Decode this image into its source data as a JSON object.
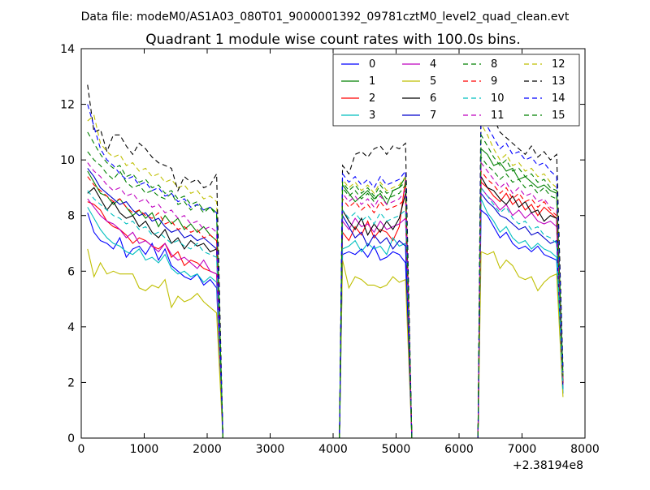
{
  "figure": {
    "suptitle": "Data file: modeM0/AS1A03_080T01_9000001392_09781cztM0_level2_quad_clean.evt",
    "x_offset_label": "+2.38194e8"
  },
  "chart_data": {
    "type": "line",
    "title": "Quadrant 1 module wise count rates with 100.0s bins.",
    "xlabel": "",
    "ylabel": "",
    "xlim": [
      0,
      8000
    ],
    "ylim": [
      0,
      14
    ],
    "x_ticks": [
      0,
      1000,
      2000,
      3000,
      4000,
      5000,
      6000,
      7000,
      8000
    ],
    "y_ticks": [
      0,
      2,
      4,
      6,
      8,
      10,
      12,
      14
    ],
    "grid": false,
    "legend_position": "top-right",
    "legend_columns": 4,
    "x_offset": 238194000,
    "gaps": [
      [
        2200,
        2250
      ],
      [
        5150,
        5300
      ],
      [
        7600,
        7650
      ]
    ],
    "segments": [
      [
        100,
        2150
      ],
      [
        4150,
        5150
      ],
      [
        6350,
        7550
      ]
    ],
    "series": [
      {
        "name": "0",
        "color": "#0000ff",
        "dash": "solid",
        "s1": [
          8.1,
          7.4,
          7.1,
          7.0,
          6.8,
          7.2,
          6.5,
          6.8,
          6.9,
          6.6,
          7.0,
          6.4,
          6.8,
          6.2,
          6.0,
          5.8,
          5.7,
          5.9,
          5.5,
          5.7,
          5.4
        ],
        "s2": [
          6.6,
          6.7,
          6.6,
          6.8,
          6.5,
          6.9,
          6.4,
          6.5,
          6.7,
          6.6,
          6.3
        ],
        "s3": [
          8.2,
          8.0,
          7.6,
          7.2,
          7.4,
          7.0,
          6.8,
          6.9,
          6.7,
          6.9,
          6.6,
          6.5,
          6.4
        ]
      },
      {
        "name": "1",
        "color": "#008000",
        "dash": "solid",
        "s1": [
          9.6,
          9.2,
          8.8,
          8.7,
          8.4,
          8.6,
          8.3,
          8.0,
          8.2,
          7.9,
          8.1,
          7.6,
          8.0,
          7.7,
          7.9,
          7.5,
          7.7,
          7.4,
          7.6,
          7.3,
          7.1
        ],
        "s2": [
          9.1,
          8.8,
          8.5,
          8.7,
          8.9,
          8.6,
          8.8,
          8.4,
          8.9,
          9.0,
          9.4
        ],
        "s3": [
          10.4,
          10.2,
          9.8,
          9.9,
          9.6,
          9.7,
          9.3,
          9.4,
          9.2,
          9.0,
          9.1,
          8.9,
          8.8
        ]
      },
      {
        "name": "2",
        "color": "#ff0000",
        "dash": "solid",
        "s1": [
          8.5,
          8.4,
          8.2,
          7.8,
          7.6,
          7.5,
          7.3,
          7.0,
          7.2,
          7.1,
          6.9,
          6.8,
          7.0,
          6.5,
          6.7,
          6.2,
          6.4,
          6.3,
          6.1,
          6.0,
          5.9
        ],
        "s2": [
          7.4,
          7.1,
          7.6,
          7.3,
          7.8,
          7.2,
          7.5,
          7.4,
          7.1,
          7.6,
          9.3
        ],
        "s3": [
          9.2,
          9.0,
          8.7,
          8.5,
          8.8,
          8.4,
          8.6,
          8.2,
          8.4,
          8.0,
          8.3,
          8.1,
          7.9
        ]
      },
      {
        "name": "3",
        "color": "#00bfbf",
        "dash": "solid",
        "s1": [
          8.3,
          7.9,
          7.5,
          7.2,
          7.0,
          6.9,
          6.7,
          6.6,
          6.8,
          6.4,
          6.5,
          6.3,
          6.6,
          6.1,
          5.9,
          6.0,
          5.8,
          5.9,
          5.6,
          5.8,
          5.6
        ],
        "s2": [
          6.8,
          6.9,
          7.1,
          6.7,
          7.0,
          6.8,
          6.9,
          6.6,
          7.2,
          6.9,
          7.0
        ],
        "s3": [
          8.6,
          8.1,
          7.8,
          7.4,
          7.6,
          7.2,
          7.0,
          7.1,
          6.8,
          7.0,
          6.8,
          6.7,
          6.5
        ]
      },
      {
        "name": "4",
        "color": "#bf00bf",
        "dash": "solid",
        "s1": [
          8.6,
          8.3,
          8.0,
          7.8,
          7.7,
          7.5,
          7.2,
          7.4,
          7.0,
          7.1,
          6.9,
          6.7,
          7.0,
          6.6,
          6.4,
          6.5,
          6.3,
          6.1,
          6.4,
          6.0,
          5.9
        ],
        "s2": [
          7.8,
          7.5,
          7.9,
          7.6,
          7.7,
          7.4,
          7.8,
          7.5,
          7.6,
          7.7,
          7.9
        ],
        "s3": [
          9.0,
          8.7,
          8.5,
          8.2,
          8.4,
          8.0,
          8.2,
          7.9,
          8.1,
          7.8,
          7.7,
          7.8,
          7.6
        ]
      },
      {
        "name": "5",
        "color": "#bfbf00",
        "dash": "solid",
        "s1": [
          6.8,
          5.8,
          6.3,
          5.9,
          6.0,
          5.9,
          5.9,
          5.9,
          5.4,
          5.3,
          5.5,
          5.4,
          5.7,
          4.7,
          5.1,
          4.9,
          5.0,
          5.2,
          4.9,
          4.7,
          4.5
        ],
        "s2": [
          6.4,
          5.4,
          5.8,
          5.7,
          5.5,
          5.5,
          5.4,
          5.5,
          5.8,
          5.6,
          5.7
        ],
        "s3": [
          6.7,
          6.6,
          6.7,
          6.1,
          6.4,
          6.2,
          5.8,
          5.7,
          5.8,
          5.3,
          5.6,
          5.8,
          5.9
        ]
      },
      {
        "name": "6",
        "color": "#000000",
        "dash": "solid",
        "s1": [
          8.8,
          9.0,
          8.6,
          8.2,
          8.5,
          8.1,
          7.9,
          8.0,
          7.6,
          7.8,
          7.4,
          7.2,
          7.5,
          7.0,
          7.2,
          6.8,
          7.1,
          6.9,
          7.0,
          6.7,
          6.8
        ],
        "s2": [
          8.2,
          7.8,
          7.5,
          7.9,
          7.3,
          7.7,
          7.4,
          7.8,
          7.5,
          7.9,
          8.8
        ],
        "s3": [
          9.4,
          9.0,
          8.9,
          8.6,
          8.4,
          8.7,
          8.3,
          8.5,
          8.1,
          8.2,
          7.8,
          8.0,
          7.9
        ]
      },
      {
        "name": "7",
        "color": "#0000cd",
        "dash": "solid",
        "s1": [
          9.7,
          9.4,
          9.0,
          8.8,
          8.6,
          8.4,
          8.5,
          8.2,
          8.0,
          8.1,
          7.8,
          7.9,
          7.6,
          7.4,
          7.5,
          7.2,
          7.3,
          7.1,
          7.2,
          7.0,
          6.8
        ],
        "s2": [
          8.0,
          7.6,
          7.2,
          7.4,
          6.9,
          7.3,
          7.0,
          7.2,
          6.8,
          7.1,
          6.9
        ],
        "s3": [
          8.8,
          8.5,
          8.3,
          8.0,
          7.9,
          7.7,
          7.5,
          7.6,
          7.3,
          7.4,
          7.2,
          7.0,
          7.1
        ]
      },
      {
        "name": "8",
        "color": "#008000",
        "dash": "dashed",
        "s1": [
          10.3,
          10.0,
          9.8,
          9.5,
          9.3,
          9.6,
          9.2,
          9.0,
          9.1,
          8.8,
          8.9,
          8.7,
          8.6,
          8.8,
          8.4,
          8.5,
          8.2,
          8.4,
          8.1,
          8.3,
          8.0
        ],
        "s2": [
          9.0,
          8.7,
          8.9,
          8.6,
          8.8,
          8.5,
          8.9,
          8.6,
          8.7,
          8.8,
          9.1
        ],
        "s3": [
          10.1,
          9.8,
          9.6,
          9.3,
          9.5,
          9.2,
          9.3,
          9.0,
          9.1,
          8.8,
          9.0,
          8.7,
          8.6
        ]
      },
      {
        "name": "9",
        "color": "#ff0000",
        "dash": "dashed",
        "s1": [
          9.4,
          9.1,
          8.9,
          8.7,
          8.5,
          8.6,
          8.3,
          8.1,
          8.2,
          8.0,
          7.9,
          8.1,
          7.7,
          7.8,
          7.5,
          7.6,
          7.4,
          7.5,
          7.2,
          7.3,
          7.1
        ],
        "s2": [
          8.6,
          8.3,
          8.5,
          8.2,
          8.4,
          8.1,
          8.5,
          8.2,
          8.3,
          8.4,
          8.6
        ],
        "s3": [
          9.6,
          9.3,
          9.1,
          8.8,
          9.0,
          8.6,
          8.8,
          8.5,
          8.6,
          8.3,
          8.5,
          8.2,
          8.0
        ]
      },
      {
        "name": "10",
        "color": "#00bfbf",
        "dash": "dashed",
        "s1": [
          8.9,
          8.6,
          8.4,
          8.2,
          8.0,
          7.9,
          7.7,
          7.8,
          7.5,
          7.6,
          7.3,
          7.4,
          7.2,
          7.0,
          7.1,
          6.9,
          6.8,
          7.0,
          6.7,
          6.6,
          6.5
        ],
        "s2": [
          8.2,
          7.9,
          8.1,
          7.8,
          8.0,
          7.7,
          8.1,
          7.8,
          7.9,
          8.0,
          8.2
        ],
        "s3": [
          9.0,
          8.7,
          8.4,
          8.1,
          8.3,
          7.9,
          7.7,
          7.8,
          7.5,
          7.6,
          7.3,
          7.2,
          7.0
        ]
      },
      {
        "name": "11",
        "color": "#bf00bf",
        "dash": "dashed",
        "s1": [
          9.9,
          9.6,
          9.4,
          9.1,
          8.9,
          9.0,
          8.7,
          8.8,
          8.5,
          8.6,
          8.3,
          8.4,
          8.1,
          8.2,
          7.9,
          8.0,
          7.7,
          7.8,
          7.5,
          7.6,
          7.4
        ],
        "s2": [
          8.8,
          8.5,
          8.7,
          8.4,
          8.6,
          8.3,
          8.7,
          8.4,
          8.5,
          8.6,
          8.9
        ],
        "s3": [
          9.9,
          9.6,
          9.3,
          9.0,
          9.2,
          8.8,
          9.0,
          8.7,
          8.8,
          8.5,
          8.6,
          8.3,
          8.2
        ]
      },
      {
        "name": "12",
        "color": "#bfbf00",
        "dash": "dashed",
        "s1": [
          11.4,
          11.6,
          10.6,
          10.3,
          10.1,
          10.2,
          9.8,
          9.9,
          9.6,
          9.7,
          9.4,
          9.5,
          9.2,
          9.3,
          9.0,
          9.1,
          8.8,
          8.9,
          8.6,
          8.7,
          8.5
        ],
        "s2": [
          9.3,
          9.0,
          9.2,
          8.9,
          9.1,
          8.8,
          9.2,
          8.9,
          9.0,
          9.1,
          9.4
        ],
        "s3": [
          11.3,
          10.9,
          10.4,
          10.0,
          10.2,
          9.8,
          9.9,
          9.6,
          9.7,
          9.4,
          9.5,
          9.2,
          9.0
        ]
      },
      {
        "name": "13",
        "color": "#000000",
        "dash": "dashed",
        "s1": [
          12.7,
          11.0,
          11.1,
          10.3,
          10.9,
          10.9,
          10.5,
          10.2,
          10.6,
          10.4,
          10.1,
          9.9,
          9.8,
          9.7,
          8.9,
          9.4,
          9.2,
          9.3,
          9.0,
          9.1,
          9.5
        ],
        "s2": [
          9.8,
          9.5,
          10.2,
          10.3,
          10.1,
          10.4,
          10.5,
          10.2,
          10.5,
          10.4,
          10.6
        ],
        "s3": [
          12.6,
          12.1,
          11.5,
          11.0,
          10.8,
          10.6,
          10.4,
          10.2,
          10.5,
          10.1,
          10.3,
          10.0,
          10.2
        ]
      },
      {
        "name": "14",
        "color": "#0000ff",
        "dash": "dashed",
        "s1": [
          12.0,
          11.2,
          10.4,
          10.0,
          9.8,
          9.5,
          9.3,
          9.4,
          9.1,
          9.2,
          8.9,
          9.0,
          8.7,
          8.8,
          8.5,
          8.6,
          8.3,
          8.4,
          8.2,
          8.3,
          8.1
        ],
        "s2": [
          9.5,
          9.2,
          9.4,
          9.1,
          9.3,
          9.0,
          9.4,
          9.1,
          9.2,
          9.3,
          9.6
        ],
        "s3": [
          11.7,
          11.2,
          10.8,
          10.4,
          10.6,
          10.2,
          10.3,
          10.0,
          10.1,
          9.8,
          9.9,
          9.6,
          9.4
        ]
      },
      {
        "name": "15",
        "color": "#008000",
        "dash": "dashed",
        "s1": [
          11.0,
          10.6,
          10.2,
          9.9,
          9.7,
          9.8,
          9.4,
          9.5,
          9.2,
          9.3,
          9.0,
          9.1,
          8.8,
          8.9,
          8.6,
          8.7,
          8.4,
          8.5,
          8.2,
          8.3,
          8.1
        ],
        "s2": [
          9.2,
          8.9,
          9.1,
          8.8,
          9.0,
          8.7,
          9.1,
          8.8,
          8.9,
          9.0,
          9.2
        ],
        "s3": [
          10.9,
          10.5,
          10.1,
          9.8,
          10.0,
          9.6,
          9.7,
          9.4,
          9.5,
          9.2,
          9.3,
          9.0,
          8.9
        ]
      }
    ]
  }
}
